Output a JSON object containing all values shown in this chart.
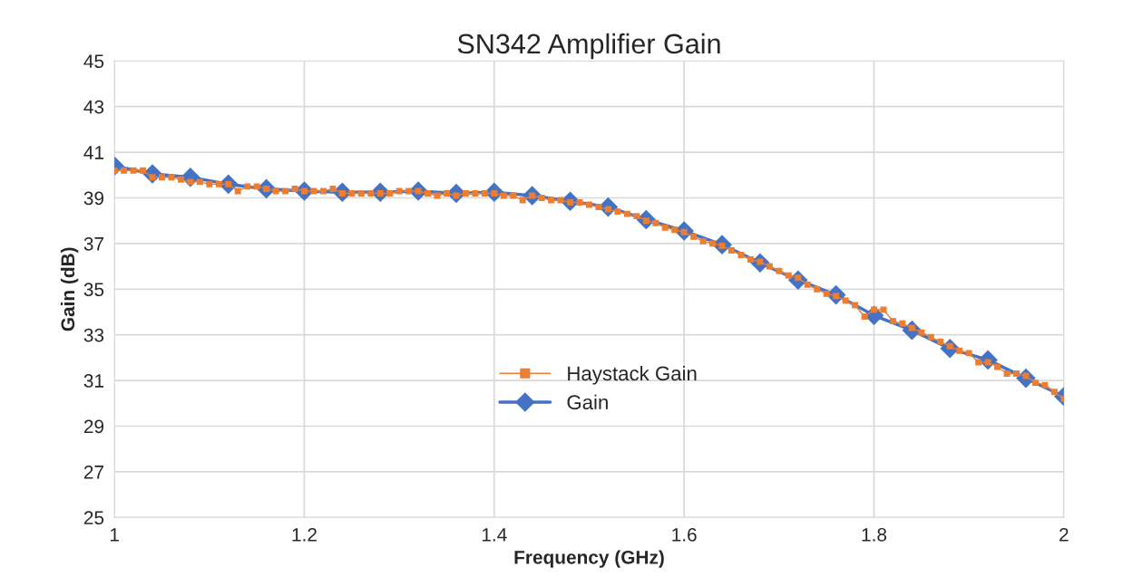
{
  "chart_data": {
    "type": "line",
    "title": "SN342 Amplifier Gain",
    "xlabel": "Frequency (GHz)",
    "ylabel": "Gain (dB)",
    "xlim": [
      1,
      2
    ],
    "xticks": [
      1,
      1.2,
      1.4,
      1.6,
      1.8,
      2
    ],
    "ylim": [
      25,
      45
    ],
    "yticks": [
      25,
      27,
      29,
      31,
      33,
      35,
      37,
      39,
      41,
      43,
      45
    ],
    "grid": true,
    "legend": "center",
    "line_style": "solid",
    "series": [
      {
        "name": "Haystack Gain",
        "color": "#ed7d31",
        "marker": "square",
        "x": [
          1.0,
          1.01,
          1.02,
          1.03,
          1.04,
          1.05,
          1.06,
          1.07,
          1.08,
          1.09,
          1.1,
          1.11,
          1.12,
          1.13,
          1.14,
          1.15,
          1.16,
          1.17,
          1.18,
          1.19,
          1.2,
          1.21,
          1.22,
          1.23,
          1.24,
          1.25,
          1.26,
          1.27,
          1.28,
          1.29,
          1.3,
          1.31,
          1.32,
          1.33,
          1.34,
          1.35,
          1.36,
          1.37,
          1.38,
          1.39,
          1.4,
          1.41,
          1.42,
          1.43,
          1.44,
          1.45,
          1.46,
          1.47,
          1.48,
          1.49,
          1.5,
          1.51,
          1.52,
          1.53,
          1.54,
          1.55,
          1.56,
          1.57,
          1.58,
          1.59,
          1.6,
          1.61,
          1.62,
          1.63,
          1.64,
          1.65,
          1.66,
          1.67,
          1.68,
          1.69,
          1.7,
          1.71,
          1.72,
          1.73,
          1.74,
          1.75,
          1.76,
          1.77,
          1.78,
          1.79,
          1.8,
          1.81,
          1.82,
          1.83,
          1.84,
          1.85,
          1.86,
          1.87,
          1.88,
          1.89,
          1.9,
          1.91,
          1.92,
          1.93,
          1.94,
          1.95,
          1.96,
          1.97,
          1.98,
          1.99,
          2.0
        ],
        "values": [
          40.2,
          40.2,
          40.2,
          40.2,
          39.9,
          39.9,
          39.9,
          39.8,
          39.7,
          39.7,
          39.6,
          39.6,
          39.6,
          39.3,
          39.5,
          39.5,
          39.4,
          39.3,
          39.3,
          39.4,
          39.3,
          39.3,
          39.3,
          39.4,
          39.2,
          39.2,
          39.2,
          39.2,
          39.2,
          39.2,
          39.3,
          39.3,
          39.3,
          39.2,
          39.1,
          39.2,
          39.1,
          39.2,
          39.2,
          39.2,
          39.2,
          39.1,
          39.1,
          38.9,
          39.1,
          39.0,
          38.9,
          38.9,
          38.8,
          38.8,
          38.7,
          38.6,
          38.5,
          38.4,
          38.3,
          38.2,
          38.0,
          37.9,
          37.7,
          37.6,
          37.5,
          37.3,
          37.1,
          37.0,
          36.9,
          36.7,
          36.5,
          36.3,
          36.2,
          36.0,
          35.8,
          35.6,
          35.5,
          35.2,
          35.0,
          34.8,
          34.7,
          34.5,
          34.3,
          33.8,
          34.1,
          34.1,
          33.6,
          33.5,
          33.3,
          33.1,
          32.9,
          32.7,
          32.5,
          32.3,
          32.2,
          31.8,
          31.8,
          31.6,
          31.3,
          31.3,
          31.2,
          30.9,
          30.8,
          30.5,
          30.2
        ]
      },
      {
        "name": "Gain",
        "color": "#4472c4",
        "marker": "diamond",
        "x": [
          1.0,
          1.04,
          1.08,
          1.12,
          1.16,
          1.2,
          1.24,
          1.28,
          1.32,
          1.36,
          1.4,
          1.44,
          1.48,
          1.52,
          1.56,
          1.6,
          1.64,
          1.68,
          1.72,
          1.76,
          1.8,
          1.84,
          1.88,
          1.92,
          1.96,
          2.0
        ],
        "values": [
          40.4,
          40.05,
          39.9,
          39.6,
          39.4,
          39.3,
          39.25,
          39.25,
          39.3,
          39.2,
          39.25,
          39.1,
          38.85,
          38.6,
          38.05,
          37.55,
          36.95,
          36.15,
          35.4,
          34.75,
          33.85,
          33.2,
          32.4,
          31.9,
          31.1,
          30.3
        ]
      }
    ]
  }
}
